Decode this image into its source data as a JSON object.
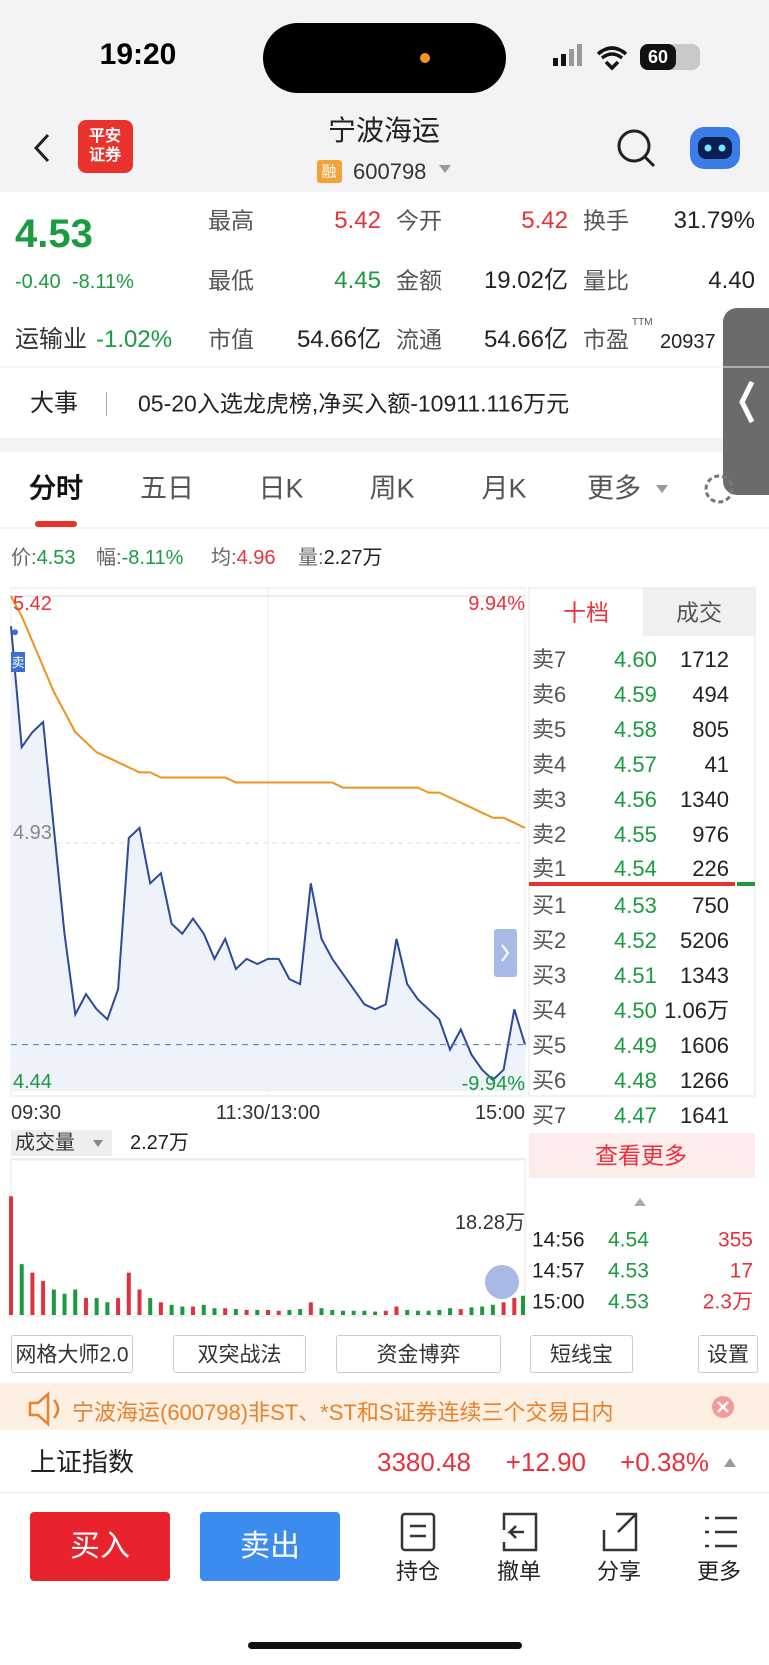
{
  "status_bar": {
    "time": "19:20",
    "battery": "60"
  },
  "header": {
    "logo": [
      "平安",
      "证券"
    ],
    "title": "宁波海运",
    "badge": "融",
    "code": "600798"
  },
  "quote": {
    "price": "4.53",
    "change": "-0.40",
    "change_pct": "-8.11%",
    "industry": "运输业",
    "industry_pct": "-1.02%",
    "stats": [
      {
        "label": "最高",
        "value": "5.42"
      },
      {
        "label": "今开",
        "value": "5.42"
      },
      {
        "label": "换手",
        "value": "31.79%"
      },
      {
        "label": "最低",
        "value": "4.45"
      },
      {
        "label": "金额",
        "value": "19.02亿"
      },
      {
        "label": "量比",
        "value": "4.40"
      },
      {
        "label": "市值",
        "value": "54.66亿"
      },
      {
        "label": "流通",
        "value": "54.66亿"
      },
      {
        "label": "市盈",
        "value": "20937"
      }
    ],
    "pe_note": "TTM"
  },
  "event": {
    "label": "大事",
    "text": "05-20入选龙虎榜,净买入额-10911.116万元"
  },
  "tabs": [
    "分时",
    "五日",
    "日K",
    "周K",
    "月K",
    "更多"
  ],
  "info_line": [
    {
      "label": "价:",
      "value": "4.53"
    },
    {
      "label": "幅:",
      "value": "-8.11%"
    },
    {
      "label": "均:",
      "value": "4.96"
    },
    {
      "label": "量:",
      "value": "2.27万"
    }
  ],
  "chart_data": [
    {
      "type": "line",
      "annotation": "卖",
      "x": [
        0,
        5,
        10,
        15,
        20,
        25,
        30,
        35,
        40,
        45,
        50,
        55,
        60,
        65,
        70,
        75,
        80,
        85,
        90,
        95,
        100,
        105,
        110,
        115,
        120,
        125,
        130,
        135,
        140,
        145,
        150,
        155,
        160,
        165,
        170,
        175,
        180,
        185,
        190,
        195,
        200,
        205,
        210,
        215,
        220,
        225,
        230,
        235,
        240
      ],
      "xlim": [
        0,
        240
      ],
      "xticks": [
        {
          "value": 0,
          "label": "09:30"
        },
        {
          "value": 120,
          "label": "11:30/13:00"
        },
        {
          "value": 240,
          "label": "15:00"
        }
      ],
      "ylim": [
        4.44,
        5.42
      ],
      "yticks": [
        5.42,
        4.93,
        4.44
      ],
      "y2lim": [
        -9.94,
        9.94
      ],
      "y2ticks": [
        {
          "value": 9.94,
          "label": "9.94%"
        },
        {
          "value": -9.94,
          "label": "-9.94%"
        }
      ],
      "series": [
        {
          "color": "#2c4a9a",
          "values": [
            5.36,
            5.12,
            5.15,
            5.17,
            4.96,
            4.75,
            4.59,
            4.63,
            4.6,
            4.58,
            4.64,
            4.94,
            4.96,
            4.85,
            4.87,
            4.77,
            4.75,
            4.78,
            4.75,
            4.7,
            4.74,
            4.68,
            4.7,
            4.69,
            4.7,
            4.7,
            4.66,
            4.65,
            4.85,
            4.74,
            4.7,
            4.67,
            4.64,
            4.61,
            4.6,
            4.61,
            4.74,
            4.65,
            4.62,
            4.6,
            4.58,
            4.52,
            4.56,
            4.51,
            4.48,
            4.46,
            4.48,
            4.6,
            4.53
          ]
        },
        {
          "color": "#f0921e",
          "values": [
            5.42,
            5.38,
            5.33,
            5.28,
            5.23,
            5.19,
            5.15,
            5.13,
            5.11,
            5.1,
            5.09,
            5.08,
            5.07,
            5.07,
            5.06,
            5.06,
            5.06,
            5.06,
            5.06,
            5.06,
            5.06,
            5.05,
            5.05,
            5.05,
            5.05,
            5.05,
            5.05,
            5.05,
            5.05,
            5.05,
            5.05,
            5.04,
            5.04,
            5.04,
            5.04,
            5.04,
            5.04,
            5.04,
            5.04,
            5.03,
            5.03,
            5.02,
            5.01,
            5.0,
            4.99,
            4.98,
            4.98,
            4.97,
            4.96
          ]
        }
      ]
    },
    {
      "type": "bar",
      "label": "成交量",
      "current": "2.27万",
      "x": [
        0,
        5,
        10,
        15,
        20,
        25,
        30,
        35,
        40,
        45,
        50,
        55,
        60,
        65,
        70,
        75,
        80,
        85,
        90,
        95,
        100,
        105,
        110,
        115,
        120,
        125,
        130,
        135,
        140,
        145,
        150,
        155,
        160,
        165,
        170,
        175,
        180,
        185,
        190,
        195,
        200,
        205,
        210,
        215,
        220,
        225,
        230,
        235,
        240
      ],
      "xlim": [
        0,
        240
      ],
      "ylim": [
        0,
        18.28
      ],
      "yticks": [
        {
          "value": 18.28,
          "label": "18.28万"
        }
      ],
      "up_color": "#e0323c",
      "down_color": "#1a9a3c",
      "values": [
        14,
        6,
        5,
        4,
        3,
        2.5,
        3,
        2,
        2,
        1.5,
        2,
        5,
        3,
        2,
        1.5,
        1.2,
        1,
        1,
        1.2,
        0.8,
        0.8,
        0.7,
        0.6,
        0.6,
        0.6,
        0.5,
        0.6,
        0.7,
        1.5,
        0.8,
        0.6,
        0.5,
        0.5,
        0.5,
        0.4,
        0.5,
        1,
        0.6,
        0.5,
        0.5,
        0.6,
        0.8,
        0.7,
        0.9,
        1,
        1.2,
        1.5,
        2,
        2.27
      ]
    }
  ],
  "order_book": {
    "tabs": [
      "十档",
      "成交"
    ],
    "rows": [
      {
        "label": "卖7",
        "price": "4.60",
        "volume": "1712"
      },
      {
        "label": "卖6",
        "price": "4.59",
        "volume": "494"
      },
      {
        "label": "卖5",
        "price": "4.58",
        "volume": "805"
      },
      {
        "label": "卖4",
        "price": "4.57",
        "volume": "41"
      },
      {
        "label": "卖3",
        "price": "4.56",
        "volume": "1340"
      },
      {
        "label": "卖2",
        "price": "4.55",
        "volume": "976"
      },
      {
        "label": "卖1",
        "price": "4.54",
        "volume": "226"
      },
      {
        "label": "买1",
        "price": "4.53",
        "volume": "750"
      },
      {
        "label": "买2",
        "price": "4.52",
        "volume": "5206"
      },
      {
        "label": "买3",
        "price": "4.51",
        "volume": "1343"
      },
      {
        "label": "买4",
        "price": "4.50",
        "volume": "1.06万"
      },
      {
        "label": "买5",
        "price": "4.49",
        "volume": "1606"
      },
      {
        "label": "买6",
        "price": "4.48",
        "volume": "1266"
      },
      {
        "label": "买7",
        "price": "4.47",
        "volume": "1641"
      }
    ],
    "more": "查看更多"
  },
  "trades": [
    {
      "time": "14:56",
      "price": "4.54",
      "volume": "355"
    },
    {
      "time": "14:57",
      "price": "4.53",
      "volume": "17"
    },
    {
      "time": "15:00",
      "price": "4.53",
      "volume": "2.3万"
    }
  ],
  "tools": [
    "网格大师2.0",
    "双突战法",
    "资金博弈",
    "短线宝",
    "设置"
  ],
  "notice": "宁波海运(600798)非ST、*ST和S证券连续三个交易日内",
  "index": {
    "name": "上证指数",
    "value": "3380.48",
    "change": "+12.90",
    "pct": "+0.38%"
  },
  "bottom": {
    "buy": "买入",
    "sell": "卖出",
    "actions": [
      "持仓",
      "撤单",
      "分享",
      "更多"
    ]
  }
}
